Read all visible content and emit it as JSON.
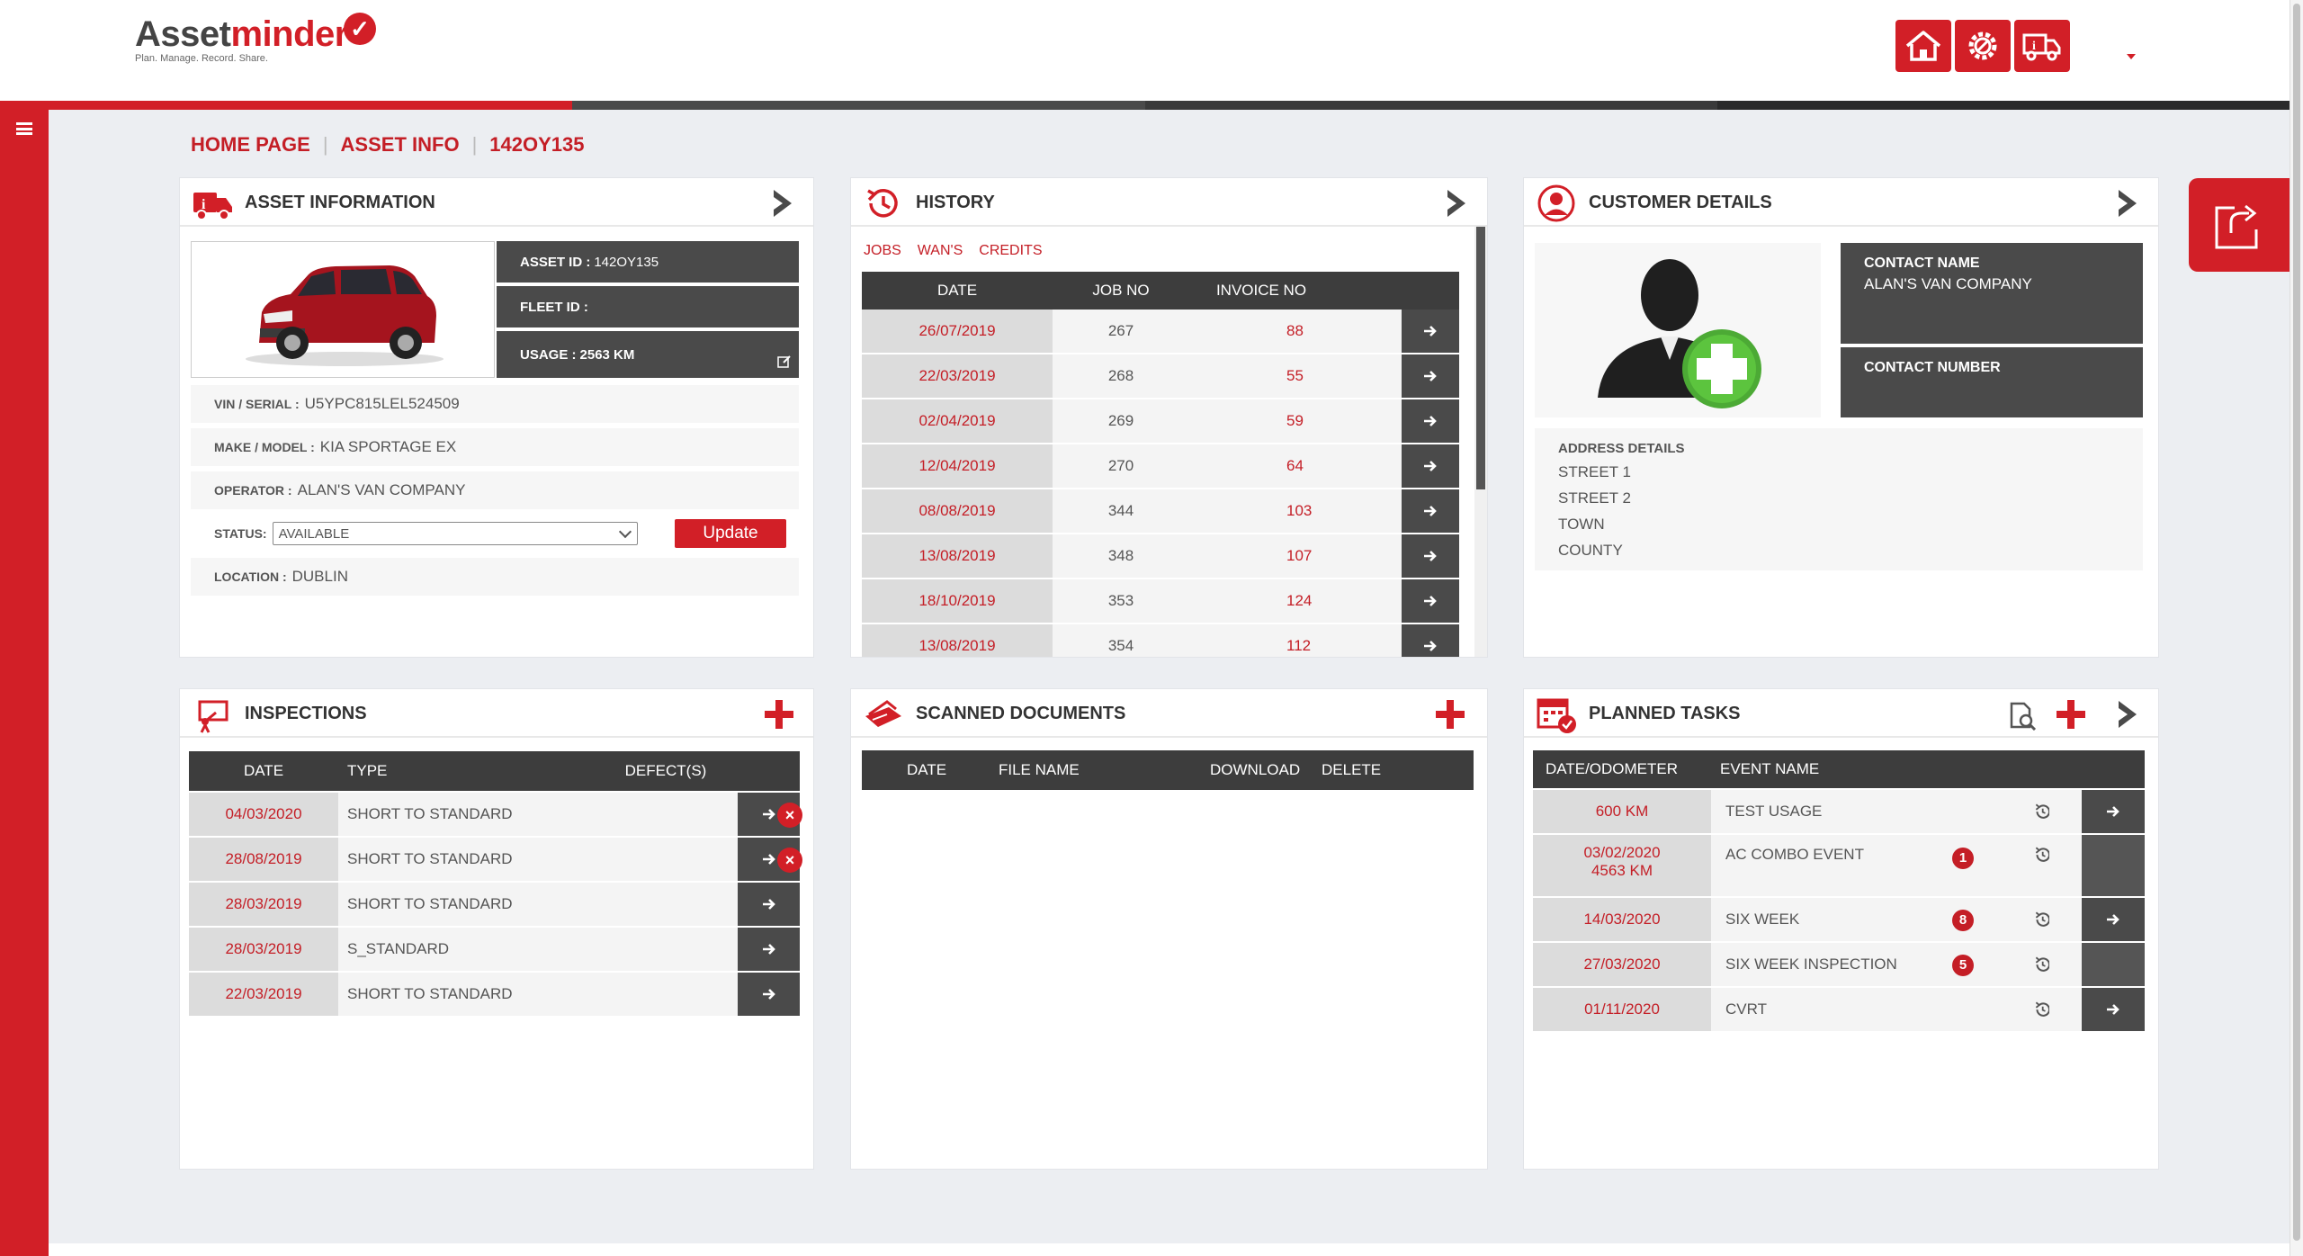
{
  "header": {
    "logo_main_a": "Asset",
    "logo_main_b": "minder",
    "logo_tag": "Plan. Manage. Record. Share.",
    "buttons": [
      "home-icon",
      "settings-gear-icon",
      "truck-info-icon"
    ]
  },
  "progress_colors": [
    "#d21f27",
    "#4a4a4a",
    "#3a3a3a",
    "#2a2a2a"
  ],
  "breadcrumb": {
    "home": "HOME PAGE",
    "asset_info": "ASSET INFO",
    "current": "142OY135"
  },
  "asset_info": {
    "title": "ASSET INFORMATION",
    "asset_id_label": "ASSET ID :",
    "asset_id": "142OY135",
    "fleet_id_label": "FLEET ID :",
    "fleet_id": "",
    "usage_label": "USAGE :",
    "usage": "2563 KM",
    "vin_label": "VIN / SERIAL :",
    "vin": "U5YPC815LEL524509",
    "make_label": "MAKE / MODEL :",
    "make": "KIA SPORTAGE EX",
    "operator_label": "OPERATOR :",
    "operator": "ALAN'S VAN COMPANY",
    "status_label": "STATUS:",
    "status": "AVAILABLE",
    "update_label": "Update",
    "location_label": "LOCATION :",
    "location": "DUBLIN"
  },
  "history": {
    "title": "HISTORY",
    "tabs": [
      "JOBS",
      "WAN'S",
      "CREDITS"
    ],
    "columns": [
      "DATE",
      "JOB NO",
      "INVOICE NO"
    ],
    "rows": [
      {
        "date": "26/07/2019",
        "job": "267",
        "invoice": "88"
      },
      {
        "date": "22/03/2019",
        "job": "268",
        "invoice": "55"
      },
      {
        "date": "02/04/2019",
        "job": "269",
        "invoice": "59"
      },
      {
        "date": "12/04/2019",
        "job": "270",
        "invoice": "64"
      },
      {
        "date": "08/08/2019",
        "job": "344",
        "invoice": "103"
      },
      {
        "date": "13/08/2019",
        "job": "348",
        "invoice": "107"
      },
      {
        "date": "18/10/2019",
        "job": "353",
        "invoice": "124"
      },
      {
        "date": "13/08/2019",
        "job": "354",
        "invoice": "112"
      }
    ]
  },
  "customer": {
    "title": "CUSTOMER DETAILS",
    "contact_name_label": "CONTACT NAME",
    "contact_name": "ALAN'S VAN COMPANY",
    "contact_number_label": "CONTACT NUMBER",
    "contact_number": "",
    "address_label": "ADDRESS DETAILS",
    "address": [
      "STREET 1",
      "STREET 2",
      "TOWN",
      "COUNTY"
    ]
  },
  "inspections": {
    "title": "INSPECTIONS",
    "columns": [
      "DATE",
      "TYPE",
      "DEFECT(S)"
    ],
    "rows": [
      {
        "date": "04/03/2020",
        "type": "SHORT TO STANDARD",
        "defect": true
      },
      {
        "date": "28/08/2019",
        "type": "SHORT TO STANDARD",
        "defect": true
      },
      {
        "date": "28/03/2019",
        "type": "SHORT TO STANDARD",
        "defect": false
      },
      {
        "date": "28/03/2019",
        "type": "S_STANDARD",
        "defect": false
      },
      {
        "date": "22/03/2019",
        "type": "SHORT TO STANDARD",
        "defect": false
      }
    ]
  },
  "scanned": {
    "title": "SCANNED DOCUMENTS",
    "columns": [
      "DATE",
      "FILE NAME",
      "DOWNLOAD",
      "DELETE"
    ]
  },
  "planned": {
    "title": "PLANNED TASKS",
    "columns": [
      "DATE/ODOMETER",
      "EVENT NAME"
    ],
    "rows": [
      {
        "date": "600 KM",
        "date2": "",
        "event": "TEST USAGE",
        "badge": "",
        "arrow": true
      },
      {
        "date": "03/02/2020",
        "date2": "4563 KM",
        "event": "AC COMBO EVENT",
        "badge": "1",
        "arrow": false
      },
      {
        "date": "14/03/2020",
        "date2": "",
        "event": "SIX WEEK",
        "badge": "8",
        "arrow": true
      },
      {
        "date": "27/03/2020",
        "date2": "",
        "event": "SIX WEEK INSPECTION",
        "badge": "5",
        "arrow": false
      },
      {
        "date": "01/11/2020",
        "date2": "",
        "event": "CVRT",
        "badge": "",
        "arrow": true
      }
    ]
  }
}
